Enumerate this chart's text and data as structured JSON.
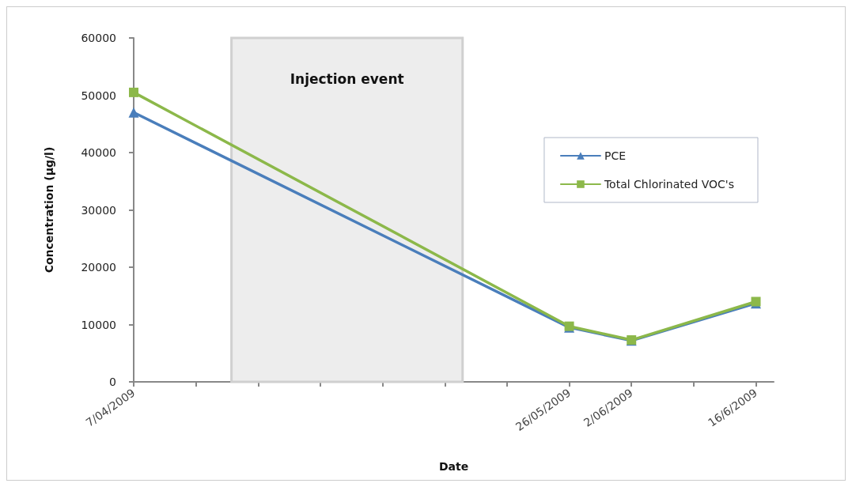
{
  "chart_data": {
    "type": "line",
    "xlabel": "Date",
    "ylabel": "Concentration (µg/l)",
    "x": [
      "2009-04-07",
      "2009-05-26",
      "2009-06-02",
      "2009-06-16"
    ],
    "series": [
      {
        "name": "PCE",
        "color": "#4a7ebb",
        "marker": "triangle",
        "values": [
          47000,
          9500,
          7200,
          13700
        ]
      },
      {
        "name": "Total Chlorinated VOC's",
        "color": "#8cb84a",
        "marker": "square",
        "values": [
          50500,
          9700,
          7300,
          14000
        ]
      }
    ],
    "xlim": [
      "2009-04-07",
      "2009-06-18"
    ],
    "xticks": [
      {
        "value": "2009-04-07",
        "label": "7/04/2009"
      },
      {
        "value": "2009-04-14",
        "label": null
      },
      {
        "value": "2009-04-21",
        "label": null
      },
      {
        "value": "2009-04-28",
        "label": null
      },
      {
        "value": "2009-05-05",
        "label": null
      },
      {
        "value": "2009-05-12",
        "label": null
      },
      {
        "value": "2009-05-19",
        "label": null
      },
      {
        "value": "2009-05-26",
        "label": "26/05/2009"
      },
      {
        "value": "2009-06-02",
        "label": "2/06/2009"
      },
      {
        "value": "2009-06-09",
        "label": null
      },
      {
        "value": "2009-06-16",
        "label": "16/6/2009"
      }
    ],
    "ylim": [
      0,
      60000
    ],
    "yticks": [
      0,
      10000,
      20000,
      30000,
      40000,
      50000,
      60000
    ],
    "bands": [
      {
        "axis": "x",
        "from": "2009-04-18",
        "to": "2009-05-14",
        "label": "Injection event",
        "color": "#ededed"
      }
    ],
    "grid": false,
    "legend": "top right",
    "line_style": "solid"
  }
}
